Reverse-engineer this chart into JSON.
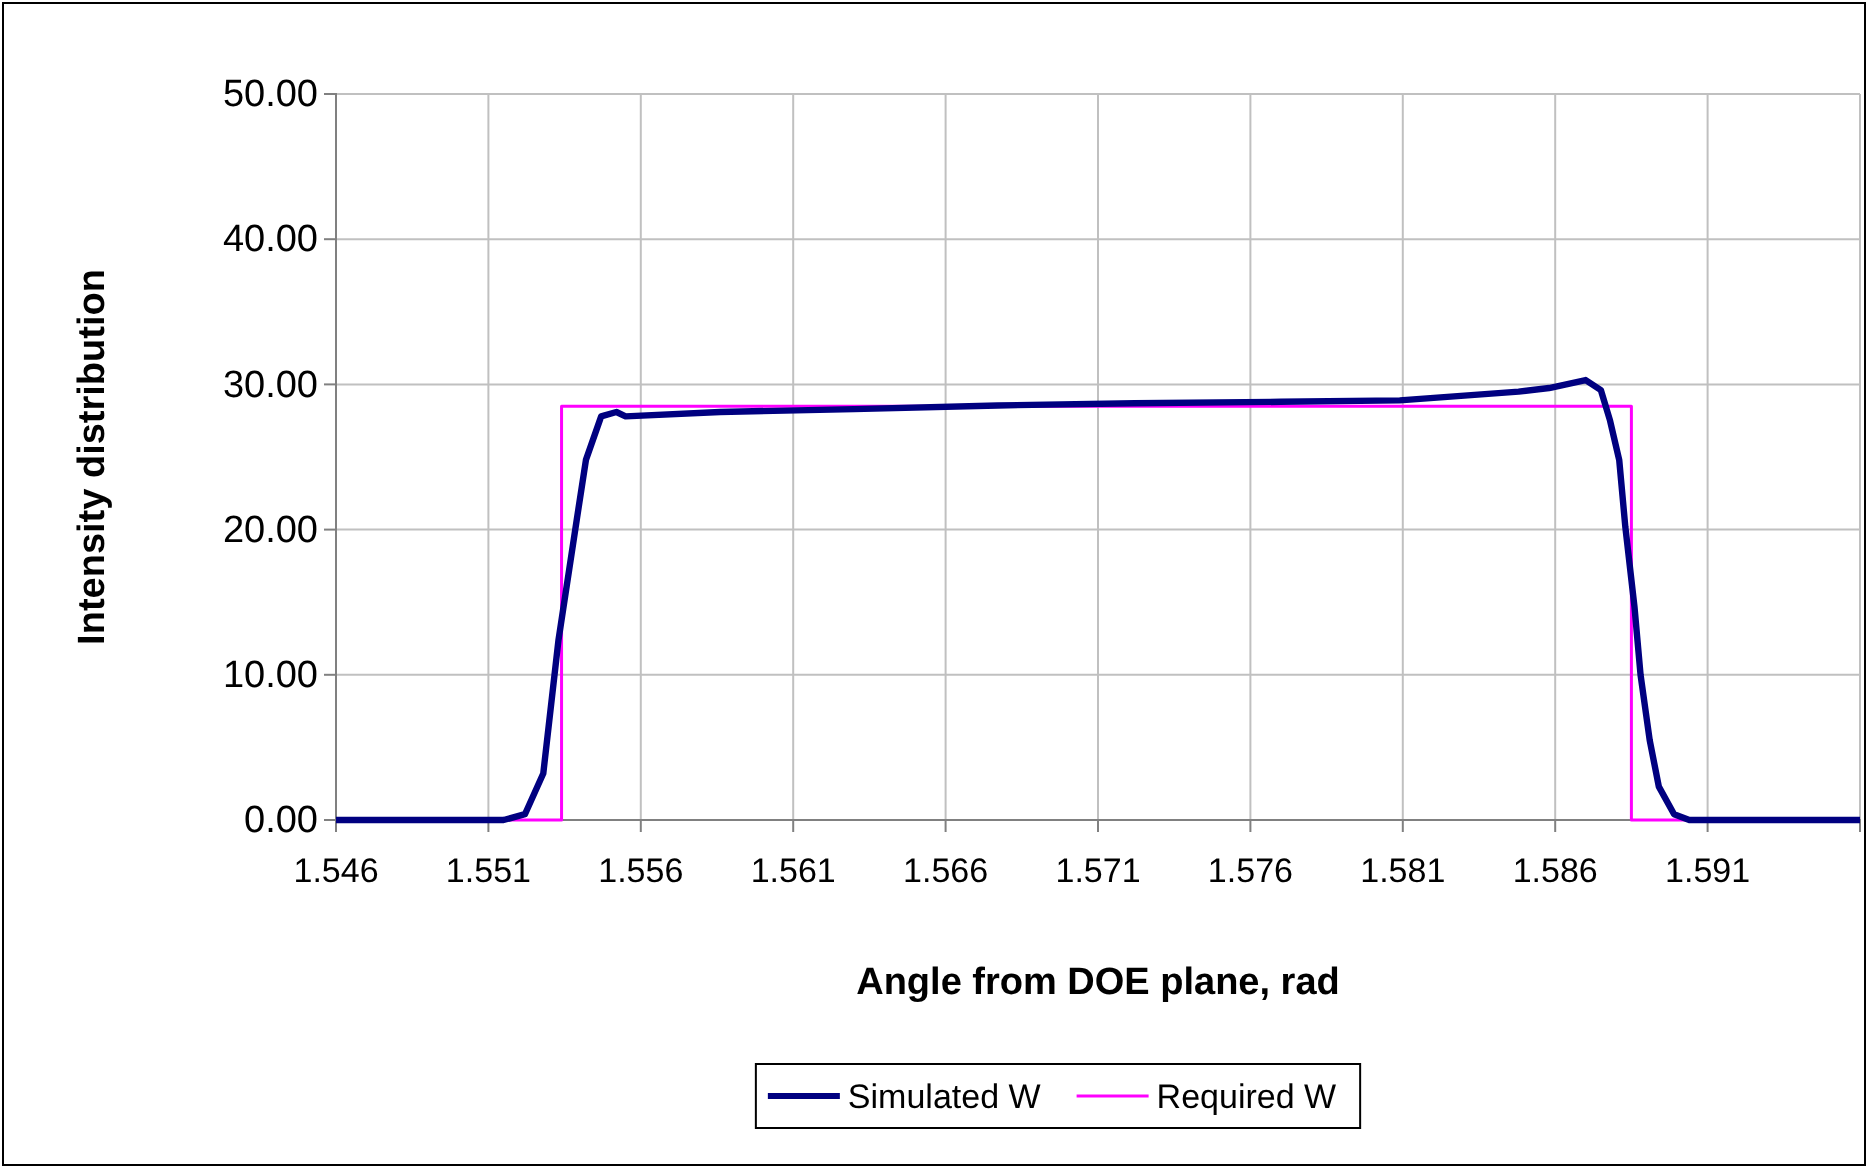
{
  "chart_data": {
    "type": "line",
    "xlabel": "Angle from DOE plane, rad",
    "ylabel": "Intensity distribution",
    "xlim": [
      1.546,
      1.596
    ],
    "xticks": [
      1.546,
      1.551,
      1.556,
      1.561,
      1.566,
      1.571,
      1.576,
      1.581,
      1.586,
      1.591,
      {
        "value": 1.596,
        "label": null
      }
    ],
    "ylim": [
      0,
      50
    ],
    "yticks": [
      {
        "value": 0,
        "label": "0.00"
      },
      {
        "value": 10,
        "label": "10.00"
      },
      {
        "value": 20,
        "label": "20.00"
      },
      {
        "value": 30,
        "label": "30.00"
      },
      {
        "value": 40,
        "label": "40.00"
      },
      {
        "value": 50,
        "label": "50.00"
      }
    ],
    "grid": true,
    "legend": "bottom",
    "marker": "none",
    "series": [
      {
        "name": "Simulated W",
        "color": "#000080",
        "x": [
          1.546,
          1.5515,
          1.5522,
          1.5528,
          1.5533,
          1.5539,
          1.5542,
          1.5547,
          1.5552,
          1.5555,
          1.5586,
          1.563,
          1.5677,
          1.5722,
          1.577,
          1.5809,
          1.5848,
          1.5858,
          1.587,
          1.5875,
          1.5878,
          1.5881,
          1.5883,
          1.5886,
          1.5888,
          1.5891,
          1.5894,
          1.5899,
          1.5904,
          1.596
        ],
        "values": [
          0,
          0,
          0.4,
          3.2,
          12.4,
          20.7,
          24.8,
          27.8,
          28.1,
          27.8,
          28.1,
          28.3,
          28.55,
          28.7,
          28.8,
          28.9,
          29.5,
          29.75,
          30.3,
          29.6,
          27.5,
          24.8,
          20.2,
          14.7,
          10,
          5.5,
          2.3,
          0.4,
          0,
          0
        ]
      },
      {
        "name": "Required W",
        "color": "#ff00ff",
        "x": [
          1.546,
          1.5534,
          1.5534,
          1.5885,
          1.5885,
          1.596
        ],
        "values": [
          0,
          0,
          28.5,
          28.5,
          0,
          0
        ]
      }
    ]
  }
}
